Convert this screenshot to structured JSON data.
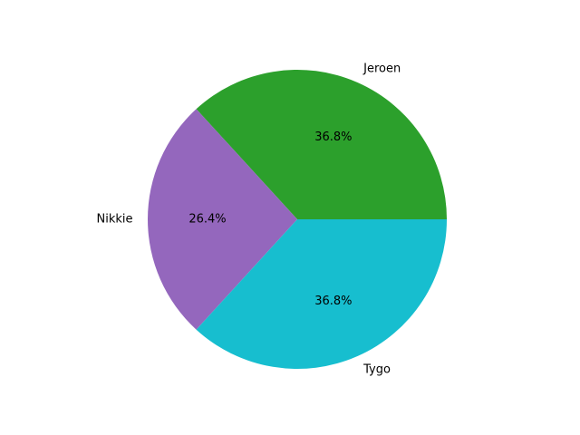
{
  "chart_data": {
    "type": "pie",
    "title": "",
    "categories": [
      "Jeroen",
      "Nikkie",
      "Tygo"
    ],
    "values": [
      36.8,
      26.4,
      36.8
    ],
    "percent_labels": [
      "36.8%",
      "26.4%",
      "36.8%"
    ],
    "colors": [
      "#2ca02c",
      "#9467bd",
      "#17becf"
    ],
    "start_angle_deg": 0,
    "direction": "counterclockwise",
    "legend": "none"
  }
}
